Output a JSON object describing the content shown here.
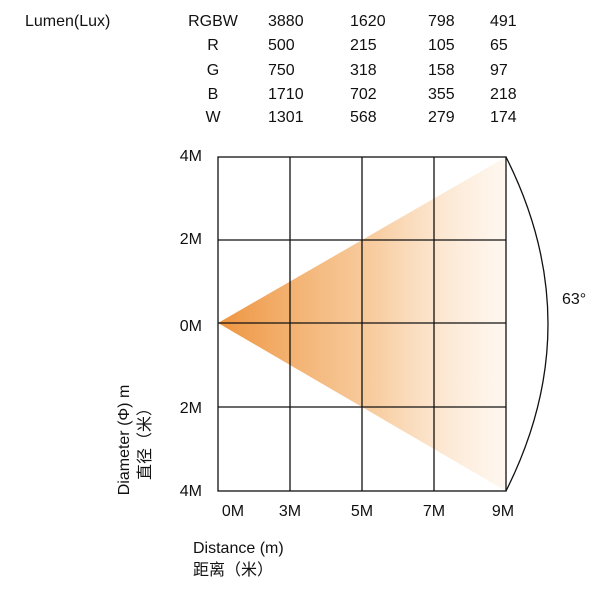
{
  "header": {
    "title": "Lumen(Lux)"
  },
  "table": {
    "rows": [
      [
        "RGBW",
        "3880",
        "1620",
        "798",
        "491"
      ],
      [
        "R",
        "500",
        "215",
        "105",
        "65"
      ],
      [
        "G",
        "750",
        "318",
        "158",
        "97"
      ],
      [
        "B",
        "1710",
        "702",
        "355",
        "218"
      ],
      [
        "W",
        "1301",
        "568",
        "279",
        "174"
      ]
    ]
  },
  "diagram": {
    "y_labels": [
      "4M",
      "2M",
      "0M",
      "2M",
      "4M"
    ],
    "x_labels": [
      "0M",
      "3M",
      "5M",
      "7M",
      "9M"
    ],
    "angle": "63°",
    "y_axis_title": [
      "Diameter (Φ) m",
      "直径（米）"
    ],
    "x_axis_title": [
      "Distance (m)",
      "距离（米）"
    ]
  }
}
